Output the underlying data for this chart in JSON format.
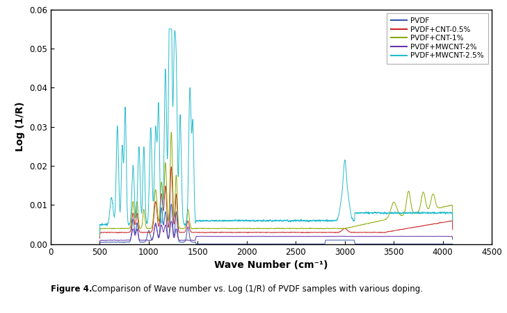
{
  "title": "",
  "xlabel": "Wave Number (cm⁻¹)",
  "ylabel": "Log (1/R)",
  "xlim": [
    0,
    4500
  ],
  "ylim": [
    0.0,
    0.06
  ],
  "xticks": [
    0,
    500,
    1000,
    1500,
    2000,
    2500,
    3000,
    3500,
    4000,
    4500
  ],
  "yticks": [
    0.0,
    0.01,
    0.02,
    0.03,
    0.04,
    0.05,
    0.06
  ],
  "legend_labels": [
    "PVDF",
    "PVDF+CNT-0.5%",
    "PVDF+CNT-1%",
    "PVDF+MWCNT-2%",
    "PVDF+MWCNT-2.5%"
  ],
  "line_colors": [
    "#3355aa",
    "#cc2222",
    "#88aa00",
    "#6633aa",
    "#22bbcc"
  ],
  "caption_bold": "Figure 4.",
  "caption_normal": " Comparison of Wave number vs. Log (1/R) of PVDF samples with various doping.",
  "background_color": "#ffffff",
  "figsize": [
    7.29,
    4.51
  ],
  "dpi": 100
}
